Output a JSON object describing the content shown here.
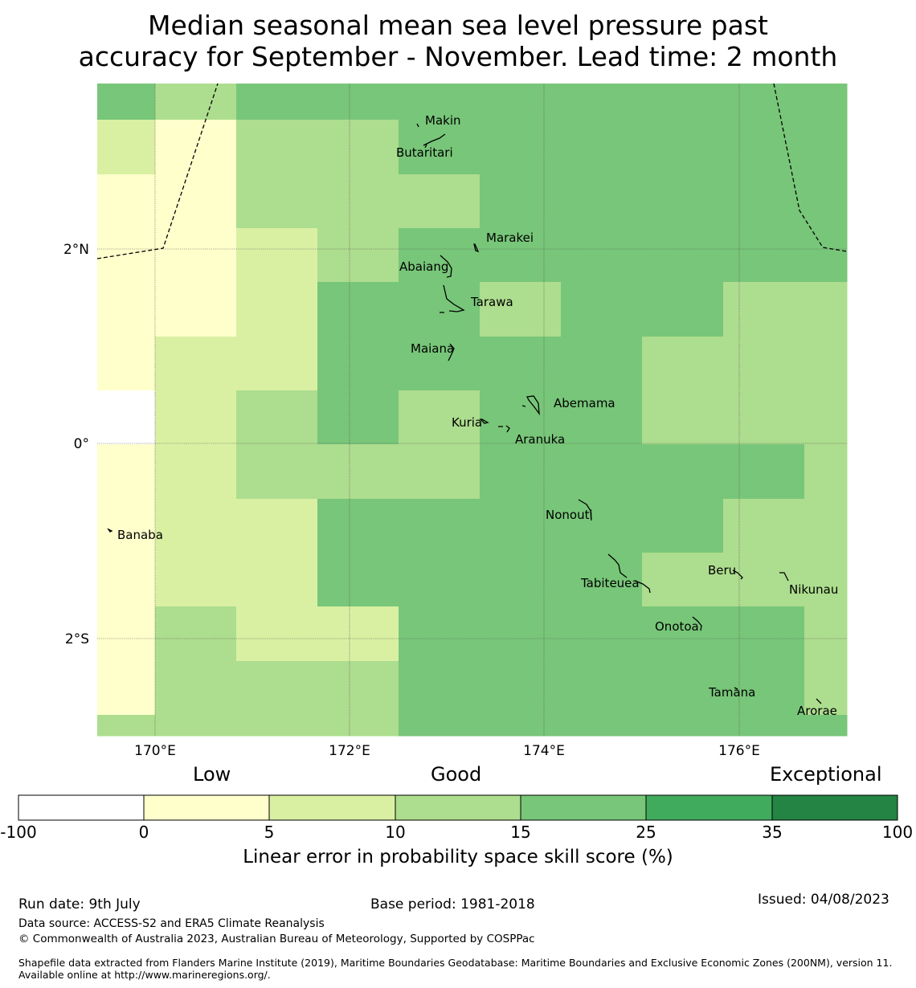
{
  "title_line1": "Median seasonal mean sea level pressure past",
  "title_line2": "accuracy for September - November. Lead time: 2 month",
  "map": {
    "lon_ticks": [
      "170°E",
      "172°E",
      "174°E",
      "176°E"
    ],
    "lat_ticks": [
      "2°N",
      "0°",
      "2°S"
    ],
    "islands": [
      {
        "name": "Makin"
      },
      {
        "name": "Butaritari"
      },
      {
        "name": "Marakei"
      },
      {
        "name": "Abaiang"
      },
      {
        "name": "Tarawa"
      },
      {
        "name": "Maiana"
      },
      {
        "name": "Abemama"
      },
      {
        "name": "Kuria"
      },
      {
        "name": "Aranuka"
      },
      {
        "name": "Nonouti"
      },
      {
        "name": "Banaba"
      },
      {
        "name": "Beru"
      },
      {
        "name": "Nikunau"
      },
      {
        "name": "Tabiteuea"
      },
      {
        "name": "Onotoa"
      },
      {
        "name": "Tamana"
      },
      {
        "name": "Arorae"
      }
    ],
    "grid_lon_cells": [
      "169.4",
      "170",
      "170.83",
      "171.67",
      "172.5",
      "173.33",
      "174.17",
      "175",
      "175.83",
      "176.67",
      "177.1"
    ],
    "grid_lat_cells": [
      "3.38",
      "3.0",
      "2.45",
      "1.9",
      "1.35",
      "0.8",
      "0.55",
      "0",
      "-0.55",
      "-1.1",
      "-1.65",
      "-2.2",
      "-2.75",
      "-2.95"
    ],
    "skill_grid": [
      [
        3,
        2,
        3,
        3,
        3,
        3,
        3,
        3,
        3,
        3
      ],
      [
        1,
        0,
        2,
        2,
        3,
        3,
        3,
        3,
        3,
        3
      ],
      [
        0,
        0,
        2,
        2,
        2,
        3,
        3,
        3,
        3,
        3
      ],
      [
        0,
        0,
        1,
        2,
        3,
        3,
        3,
        3,
        3,
        3
      ],
      [
        0,
        0,
        1,
        3,
        3,
        2,
        3,
        3,
        2,
        2
      ],
      [
        0,
        1,
        1,
        3,
        3,
        3,
        3,
        2,
        2,
        2
      ],
      [
        -1,
        1,
        2,
        3,
        2,
        3,
        3,
        2,
        2,
        2
      ],
      [
        0,
        1,
        2,
        2,
        2,
        3,
        3,
        3,
        3,
        2
      ],
      [
        0,
        1,
        1,
        3,
        3,
        3,
        3,
        3,
        2,
        2
      ],
      [
        0,
        1,
        1,
        3,
        3,
        3,
        3,
        2,
        2,
        2
      ],
      [
        0,
        2,
        1,
        1,
        3,
        3,
        3,
        3,
        3,
        2
      ],
      [
        0,
        2,
        2,
        2,
        3,
        3,
        3,
        3,
        3,
        2
      ],
      [
        2,
        2,
        2,
        2,
        3,
        3,
        3,
        3,
        3,
        3
      ]
    ]
  },
  "colorbar": {
    "category_low": "Low",
    "category_good": "Good",
    "category_exceptional": "Exceptional",
    "ticks": [
      "-100",
      "0",
      "5",
      "10",
      "15",
      "25",
      "35",
      "100"
    ],
    "colors": [
      "#ffffff",
      "#ffffcc",
      "#d9f0a3",
      "#addd8e",
      "#78c679",
      "#41ab5d",
      "#238443"
    ],
    "label": "Linear error in probability space skill score (%)"
  },
  "footer": {
    "run_date": "Run date: 9th July",
    "base_period": "Base period: 1981-2018",
    "issued": "Issued: 04/08/2023",
    "data_source": "Data source: ACCESS-S2 and ERA5 Climate Reanalysis",
    "copyright": "© Commonwealth of Australia 2023, Australian Bureau of Meteorology, Supported by COSPPac",
    "shapefile": "Shapefile data extracted from Flanders Marine Institute (2019), Maritime Boundaries Geodatabase: Maritime Boundaries and Exclusive Economic Zones (200NM), version 11. Available online at http://www.marineregions.org/."
  }
}
